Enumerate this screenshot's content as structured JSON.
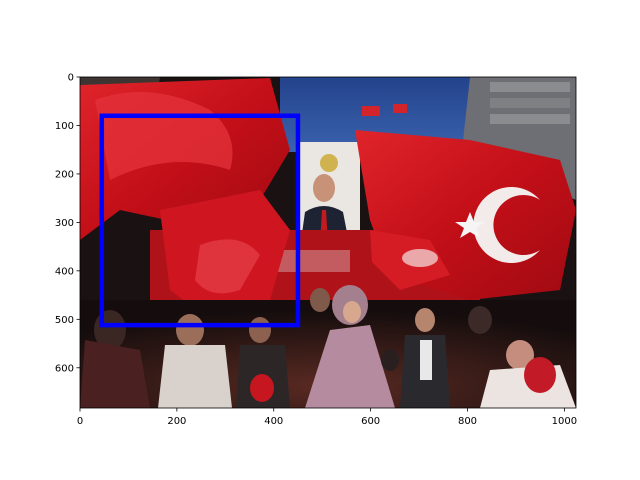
{
  "figure": {
    "image_extent": {
      "x": [
        0,
        1024
      ],
      "y": [
        683,
        0
      ]
    },
    "xticks": [
      0,
      200,
      400,
      600,
      800,
      1000
    ],
    "yticks": [
      0,
      100,
      200,
      300,
      400,
      500,
      600
    ],
    "xtick_labels": [
      "0",
      "200",
      "400",
      "600",
      "800",
      "1000"
    ],
    "ytick_labels": [
      "0",
      "100",
      "200",
      "300",
      "400",
      "500",
      "600"
    ],
    "bbox_annotation": {
      "x_min": 45,
      "y_min": 80,
      "x_max": 450,
      "y_max": 512,
      "color": "#0000ff"
    }
  },
  "photo": {
    "description": "Night rally crowd waving red Turkish flags in front of a building with a large portrait banner",
    "colors": {
      "flag_red": "#d1121b",
      "sky": "#2a4f9c",
      "crowd_dark": "#1c1414",
      "star_white": "#f5f5f5"
    }
  }
}
